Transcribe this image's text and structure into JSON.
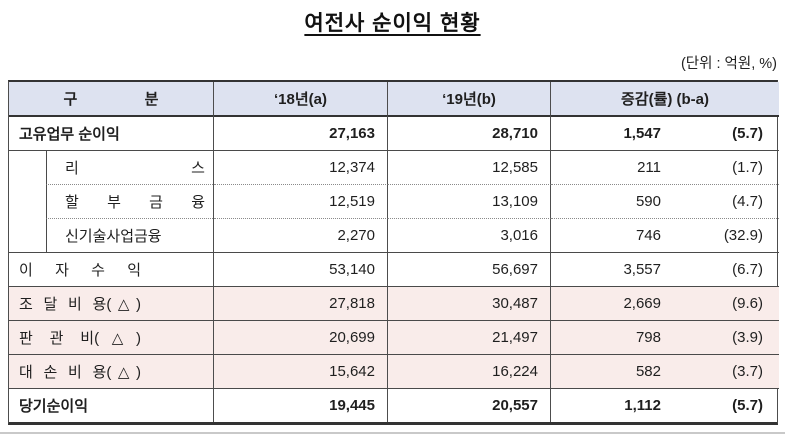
{
  "title": "여전사 순이익 현황",
  "unit_note": "(단위 : 억원, %)",
  "colors": {
    "header_bg": "#dde2f0",
    "highlight_row_bg": "#f9ecea",
    "border": "#333333",
    "bottom_rule": "#c9c9c9"
  },
  "table": {
    "columns": [
      "구 분",
      "‘18년(a)",
      "‘19년(b)",
      "증감(률) (b-a)"
    ],
    "rows": [
      {
        "label": "고유업무 순이익",
        "v18": "27,163",
        "v19": "28,710",
        "chg": "1,547",
        "rate": "(5.7)"
      },
      {
        "label": "리 스",
        "v18": "12,374",
        "v19": "12,585",
        "chg": "211",
        "rate": "(1.7)"
      },
      {
        "label": "할 부 금 융",
        "v18": "12,519",
        "v19": "13,109",
        "chg": "590",
        "rate": "(4.7)"
      },
      {
        "label": "신기술사업금융",
        "v18": "2,270",
        "v19": "3,016",
        "chg": "746",
        "rate": "(32.9)"
      },
      {
        "label": "이 자 수 익",
        "v18": "53,140",
        "v19": "56,697",
        "chg": "3,557",
        "rate": "(6.7)"
      },
      {
        "label": "조 달 비 용(△)",
        "v18": "27,818",
        "v19": "30,487",
        "chg": "2,669",
        "rate": "(9.6)"
      },
      {
        "label": "판 관 비(△)",
        "v18": "20,699",
        "v19": "21,497",
        "chg": "798",
        "rate": "(3.9)"
      },
      {
        "label": "대 손 비 용(△)",
        "v18": "15,642",
        "v19": "16,224",
        "chg": "582",
        "rate": "(3.7)"
      },
      {
        "label": "당기순이익",
        "v18": "19,445",
        "v19": "20,557",
        "chg": "1,112",
        "rate": "(5.7)"
      }
    ]
  }
}
